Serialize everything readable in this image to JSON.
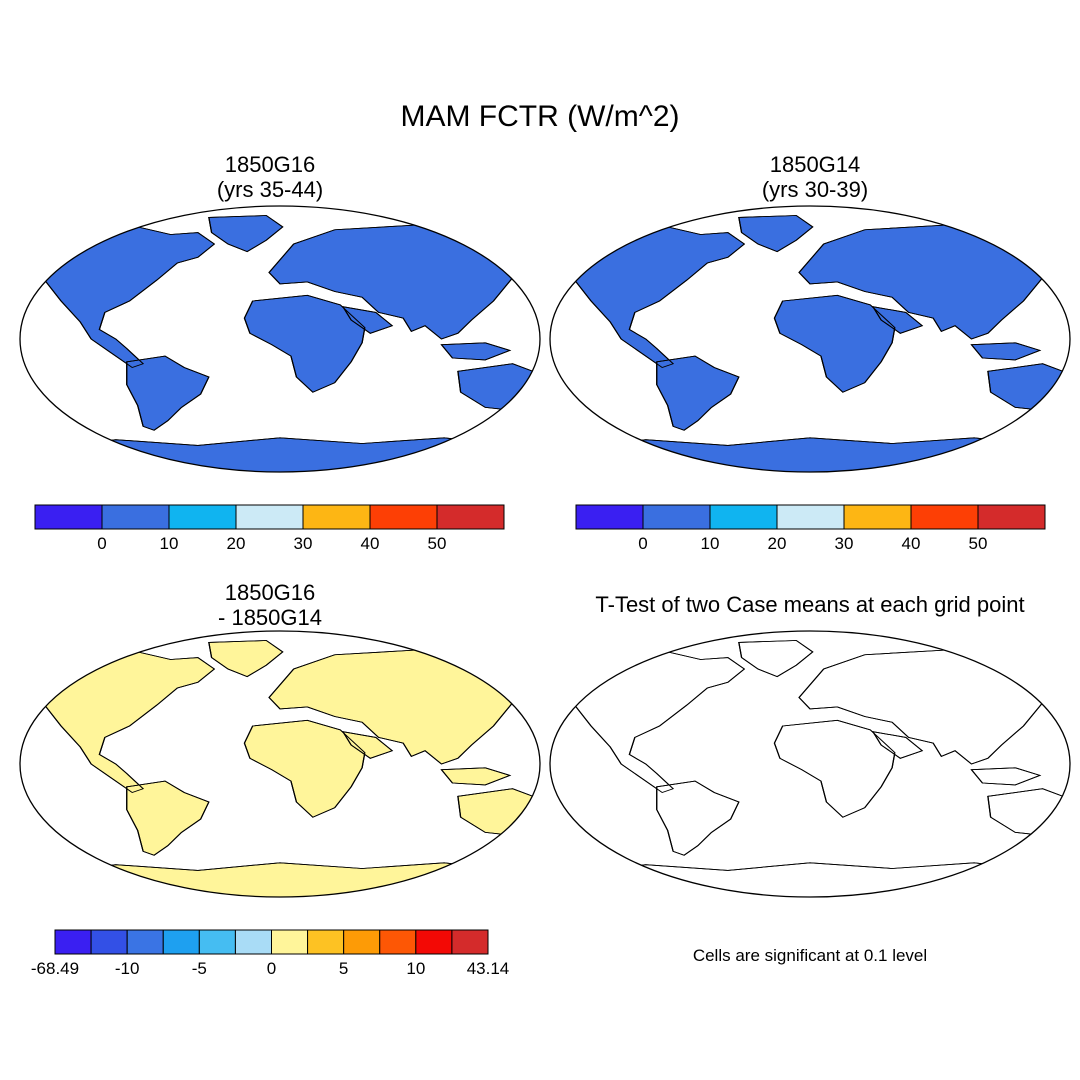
{
  "main_title": "MAM FCTR (W/m^2)",
  "panels": {
    "top_left": {
      "title_line1": "1850G16",
      "title_line2": "(yrs 35-44)"
    },
    "top_right": {
      "title_line1": "1850G14",
      "title_line2": "(yrs 30-39)"
    },
    "bottom_left": {
      "title_line1": "1850G16",
      "title_line2": "- 1850G14"
    },
    "bottom_right": {
      "title": "T-Test of two Case means at each grid point",
      "note": "Cells are significant at 0.1 level"
    }
  },
  "colorbars": {
    "absolute": {
      "colors": [
        "#3a1ff2",
        "#3a6fe0",
        "#10b4f0",
        "#cceaf6",
        "#fdb614",
        "#fd3f05",
        "#d42b2b"
      ],
      "labels": [
        "0",
        "10",
        "20",
        "30",
        "40",
        "50"
      ]
    },
    "difference": {
      "colors": [
        "#3a1ff2",
        "#3350e6",
        "#3a74e4",
        "#1ea0f0",
        "#45bdf2",
        "#a9dcf6",
        "#fff59a",
        "#fdc223",
        "#fd9b06",
        "#fd5705",
        "#f30905",
        "#d42b2b"
      ],
      "labels": [
        "-68.49",
        "-10",
        "-5",
        "0",
        "5",
        "10",
        "43.14"
      ]
    }
  },
  "colors": {
    "significant": "#ff0000",
    "land_background_abs": "#3a6fe0",
    "land_background_diff": "#fff59a"
  }
}
